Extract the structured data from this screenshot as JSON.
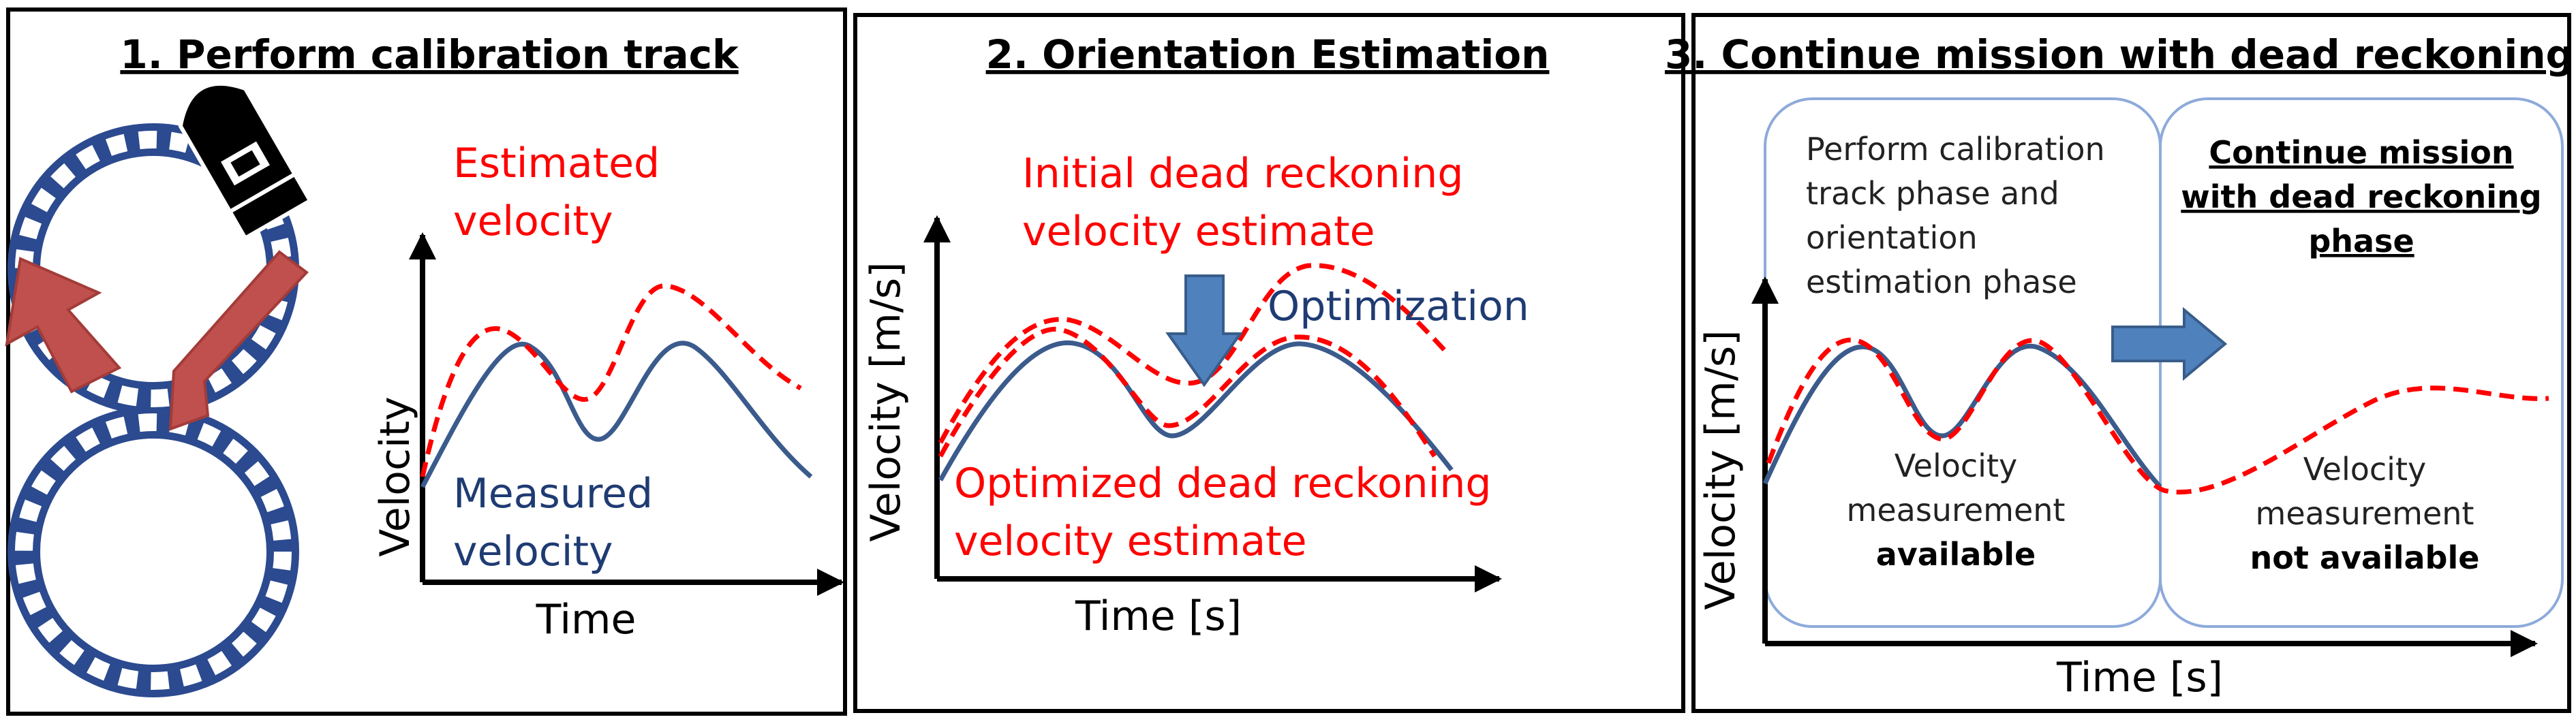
{
  "colors": {
    "measured": "#3b5b8c",
    "estimated": "#ff0000",
    "track": "#2b4a8f",
    "arrow_red": "#c0504d",
    "arrow_blue": "#4f81bd",
    "bracket": "#8eaadb"
  },
  "panel1": {
    "title": "1. Perform calibration track",
    "estimated_line1": "Estimated",
    "estimated_line2": "velocity",
    "measured_line1": "Measured",
    "measured_line2": "velocity",
    "ylabel": "Velocity",
    "xlabel": "Time",
    "icons": [
      "figure-eight-track",
      "vehicle",
      "direction-arrow"
    ]
  },
  "panel2": {
    "title": "2. Orientation Estimation",
    "initial_line1": "Initial dead reckoning",
    "initial_line2": "velocity estimate",
    "optimization": "Optimization",
    "optimized_line1": "Optimized dead reckoning",
    "optimized_line2": "velocity estimate",
    "ylabel": "Velocity [m/s]",
    "xlabel": "Time [s]",
    "icons": [
      "down-arrow"
    ]
  },
  "panel3": {
    "title": "3. Continue mission with dead reckoning",
    "phase1_line1": "Perform calibration",
    "phase1_line2": "track phase and",
    "phase1_line3": "orientation",
    "phase1_line4": "estimation phase",
    "phase2_line1": "Continue mission",
    "phase2_line2": "with dead reckoning",
    "phase2_line3": "phase",
    "avail_line1": "Velocity",
    "avail_line2": "measurement",
    "avail_line3": "available",
    "notavail_line1": "Velocity",
    "notavail_line2": "measurement",
    "notavail_line3": "not available",
    "ylabel": "Velocity [m/s]",
    "xlabel": "Time [s]",
    "icons": [
      "right-arrow"
    ]
  }
}
